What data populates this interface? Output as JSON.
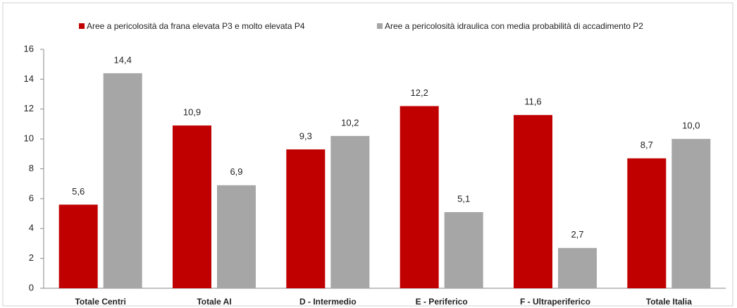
{
  "chart_data": {
    "type": "bar",
    "categories": [
      "Totale Centri",
      "Totale AI",
      "D - Intermedio",
      "E - Periferico",
      "F - Ultraperiferico",
      "Totale Italia"
    ],
    "series": [
      {
        "name": "Aree a pericolosità da frana elevata P3 e molto elevata P4",
        "color": "#c00000",
        "values": [
          5.6,
          10.9,
          9.3,
          12.2,
          11.6,
          8.7
        ],
        "value_labels": [
          "5,6",
          "10,9",
          "9,3",
          "12,2",
          "11,6",
          "8,7"
        ]
      },
      {
        "name": "Aree a pericolosità idraulica con media probabilità di accadimento P2",
        "color": "#a6a6a6",
        "values": [
          14.4,
          6.9,
          10.2,
          5.1,
          2.7,
          10.0
        ],
        "value_labels": [
          "14,4",
          "6,9",
          "10,2",
          "5,1",
          "2,7",
          "10,0"
        ]
      }
    ],
    "ylim": [
      0,
      16
    ],
    "yticks": [
      0,
      2,
      4,
      6,
      8,
      10,
      12,
      14,
      16
    ],
    "grid": false,
    "legend": "top"
  }
}
